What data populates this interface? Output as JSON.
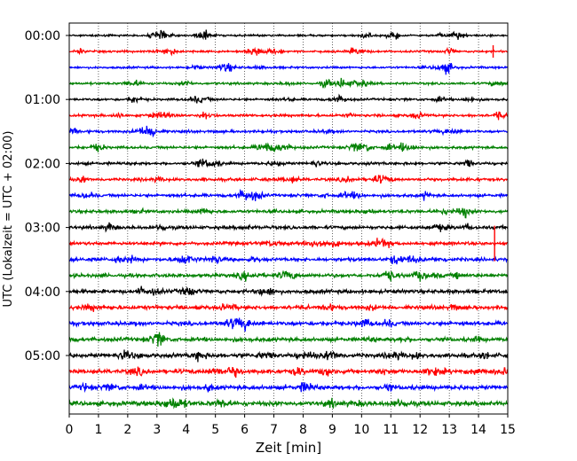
{
  "chart_data": {
    "type": "line",
    "xlabel": "Zeit  [min]",
    "ylabel": "UTC (Lokalzeit = UTC + 02:00)",
    "xlim": [
      0,
      15
    ],
    "x_ticks": [
      0,
      1,
      2,
      3,
      4,
      5,
      6,
      7,
      8,
      9,
      10,
      11,
      12,
      13,
      14,
      15
    ],
    "y_tick_labels": [
      "00:00",
      "01:00",
      "02:00",
      "03:00",
      "04:00",
      "05:00"
    ],
    "trace_interval_min": 15,
    "trace_count": 24,
    "grid": "vertical dotted",
    "colors": [
      "#000000",
      "#ff0000",
      "#0000ff",
      "#008000"
    ]
  }
}
